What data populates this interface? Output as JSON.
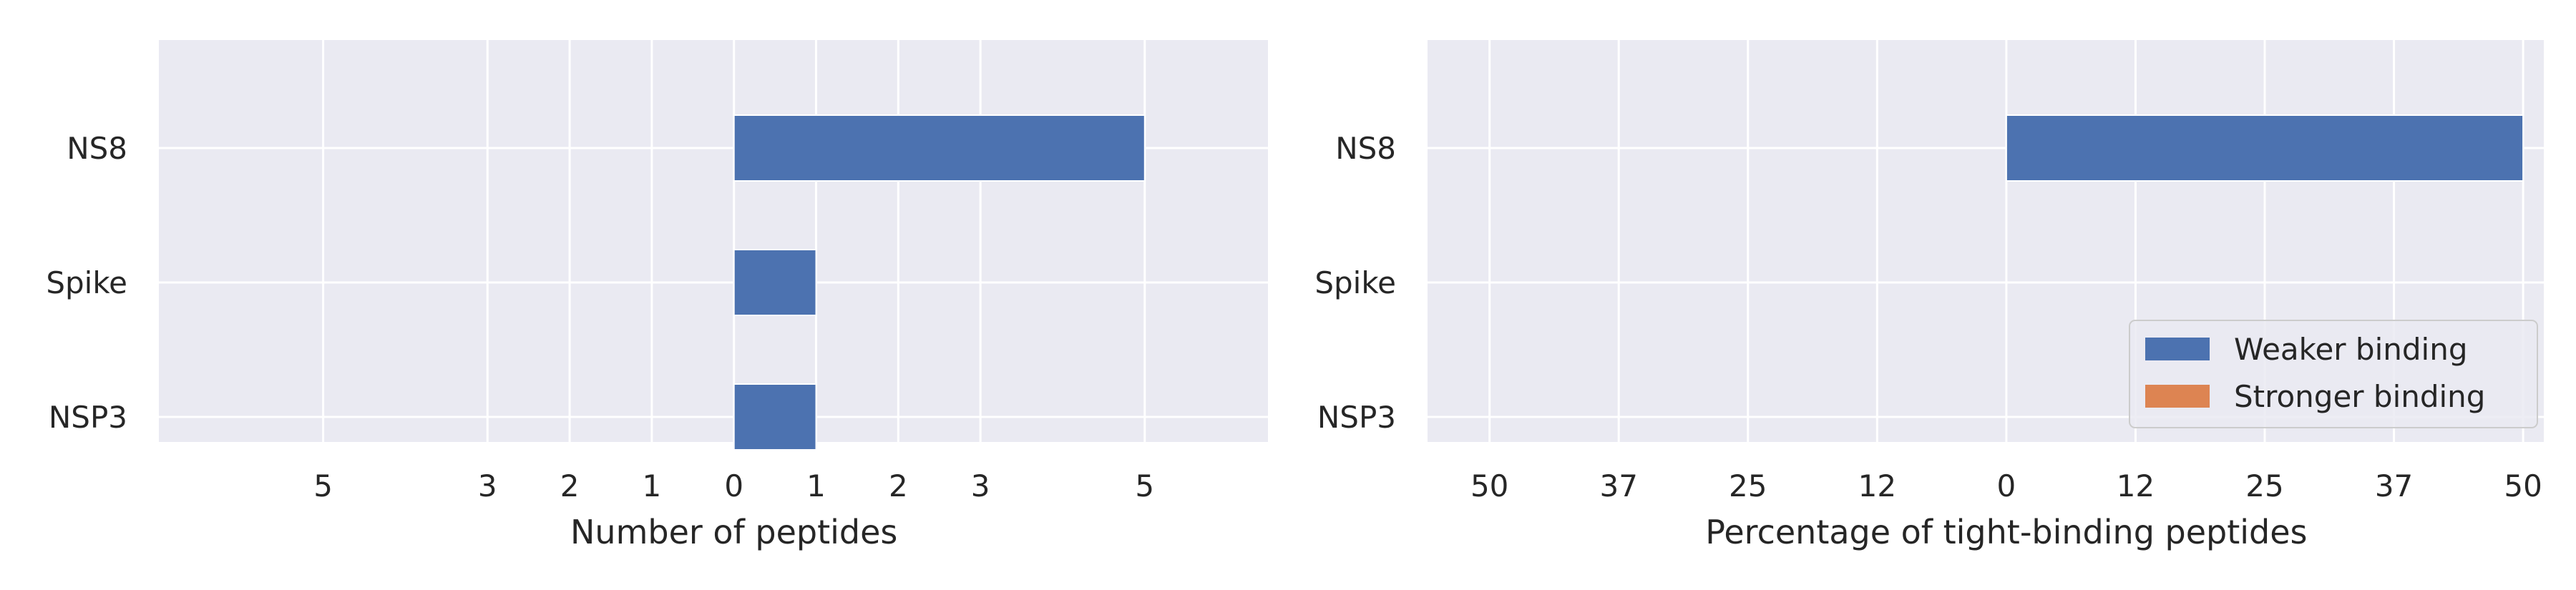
{
  "chart_data": [
    {
      "type": "bar",
      "orientation": "horizontal",
      "categories": [
        "NS8",
        "Spike",
        "NSP3"
      ],
      "series": [
        {
          "name": "Weaker binding",
          "color": "#4C72B0",
          "values": [
            5,
            1,
            1
          ]
        },
        {
          "name": "Stronger binding",
          "color": "#DD8452",
          "values": [
            0,
            0,
            0
          ]
        }
      ],
      "xlabel": "Number of peptides",
      "ylabel": "",
      "xlim": [
        -7,
        6.5
      ],
      "xticks": [
        -5,
        -3,
        -2,
        -1,
        0,
        1,
        2,
        3,
        5
      ],
      "xtick_labels": [
        "5",
        "3",
        "2",
        "1",
        "0",
        "1",
        "2",
        "3",
        "5"
      ],
      "grid": true,
      "background": "#EAEAF2"
    },
    {
      "type": "bar",
      "orientation": "horizontal",
      "categories": [
        "NS8",
        "Spike",
        "NSP3"
      ],
      "series": [
        {
          "name": "Weaker binding",
          "color": "#4C72B0",
          "values": [
            50,
            0,
            0
          ]
        },
        {
          "name": "Stronger binding",
          "color": "#DD8452",
          "values": [
            0,
            0,
            0
          ]
        }
      ],
      "xlabel": "Percentage of tight-binding peptides",
      "ylabel": "",
      "xlim": [
        -56,
        52
      ],
      "xticks": [
        -50,
        -37.5,
        -25,
        -12.5,
        0,
        12.5,
        25,
        37.5,
        50
      ],
      "xtick_labels": [
        "50",
        "37",
        "25",
        "12",
        "0",
        "12",
        "25",
        "37",
        "50"
      ],
      "grid": true,
      "legend": {
        "placement": "lower right",
        "entries": [
          {
            "label": "Weaker binding",
            "color": "#4C72B0"
          },
          {
            "label": "Stronger binding",
            "color": "#DD8452"
          }
        ]
      },
      "background": "#EAEAF2"
    }
  ]
}
